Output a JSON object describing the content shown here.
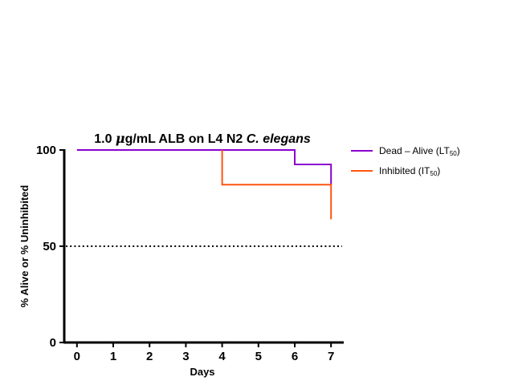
{
  "chart_data": {
    "type": "line",
    "title_prefix": "1.0 ",
    "title_mu": "μ",
    "title_middle": "g/mL ALB on L4 N2 ",
    "title_species": "C. elegans",
    "xlabel": "Days",
    "ylabel": "% Alive or % Uninhibited",
    "x_ticks": [
      "0",
      "1",
      "2",
      "3",
      "4",
      "5",
      "6",
      "7"
    ],
    "y_ticks": [
      "0",
      "50",
      "100"
    ],
    "xlim": [
      -0.35,
      7.35
    ],
    "ylim": [
      0,
      100
    ],
    "reference_line": {
      "y": 50,
      "style": "dotted"
    },
    "series": [
      {
        "legend_main": "Dead – Alive (LT",
        "legend_sub": "50",
        "legend_tail": ")",
        "color": "#8B00CC",
        "steps": [
          [
            0,
            100
          ],
          [
            6,
            100
          ],
          [
            6,
            92.5
          ],
          [
            7,
            92.5
          ],
          [
            7,
            82
          ]
        ]
      },
      {
        "legend_main": "Inhibited (IT",
        "legend_sub": "50",
        "legend_tail": ")",
        "color": "#FF5511",
        "steps": [
          [
            4,
            100
          ],
          [
            4,
            82
          ],
          [
            7,
            82
          ],
          [
            7,
            64
          ]
        ]
      }
    ]
  }
}
